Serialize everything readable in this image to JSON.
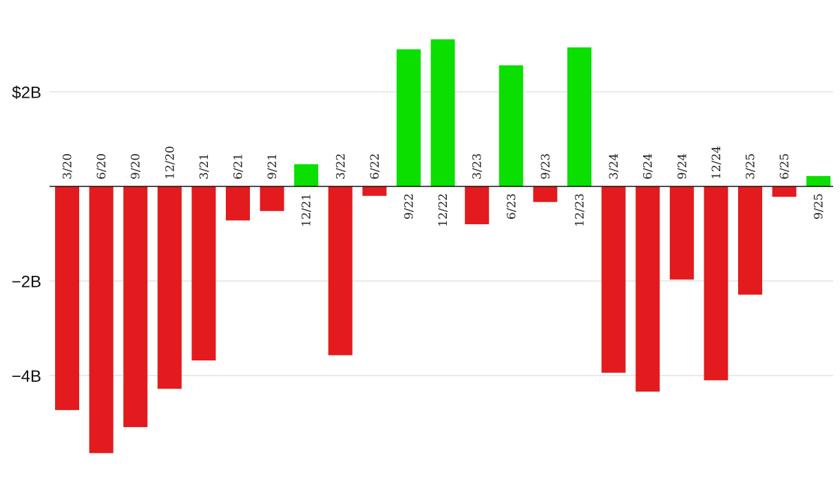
{
  "chart_data": {
    "type": "bar",
    "categories": [
      "3/20",
      "6/20",
      "9/20",
      "12/20",
      "3/21",
      "6/21",
      "9/21",
      "12/21",
      "3/22",
      "6/22",
      "9/22",
      "12/22",
      "3/23",
      "6/23",
      "9/23",
      "12/23",
      "3/24",
      "6/24",
      "9/24",
      "12/24",
      "3/25",
      "6/25",
      "9/25"
    ],
    "values": [
      -4.73,
      -5.64,
      -5.09,
      -4.28,
      -3.68,
      -0.72,
      -0.52,
      0.47,
      -3.57,
      -0.2,
      2.9,
      3.11,
      -0.8,
      2.56,
      -0.33,
      2.94,
      -3.94,
      -4.34,
      -1.97,
      -4.1,
      -2.29,
      -0.22,
      0.22
    ],
    "yticks": [
      {
        "value": 2,
        "label": "$2B"
      },
      {
        "value": -2,
        "label": "−2B"
      },
      {
        "value": -4,
        "label": "−4B"
      }
    ],
    "ylim": [
      -6,
      3.9
    ],
    "grid": true,
    "legend": "none",
    "colors": {
      "positive": "#0adf00",
      "negative": "#e31b1e",
      "zero_line": "#111111",
      "grid": "#e2e2e2"
    }
  }
}
